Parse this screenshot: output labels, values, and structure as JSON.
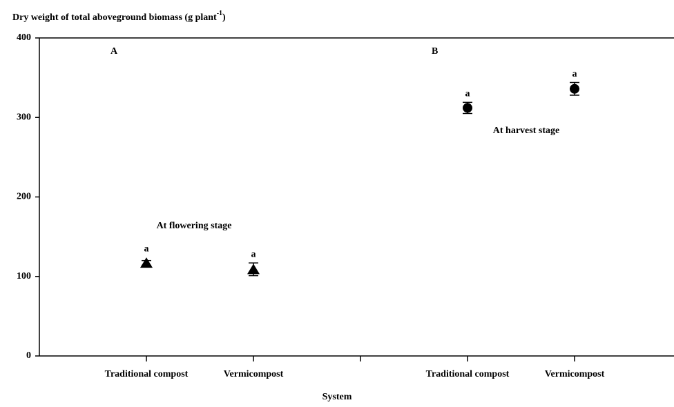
{
  "chart_data": {
    "type": "scatter",
    "y_label": "Dry weight of total aboveground biomass (g plant",
    "y_label_sup": "-1",
    "y_label_end": ")",
    "x_label": "System",
    "ylim": [
      0,
      400
    ],
    "yticks": [
      0,
      100,
      200,
      300,
      400
    ],
    "color": "#000000",
    "panels": [
      {
        "label": "A",
        "annotation": "At flowering stage",
        "marker": "triangle",
        "categories": [
          "Traditional compost",
          "Vermicompost"
        ],
        "values": [
          117,
          109
        ],
        "errors": [
          3,
          8
        ],
        "significance": [
          "a",
          "a"
        ]
      },
      {
        "label": "B",
        "annotation": "At harvest stage",
        "marker": "circle",
        "categories": [
          "Traditional compost",
          "Vermicompost"
        ],
        "values": [
          312,
          336
        ],
        "errors": [
          7,
          8
        ],
        "significance": [
          "a",
          "a"
        ]
      }
    ]
  }
}
